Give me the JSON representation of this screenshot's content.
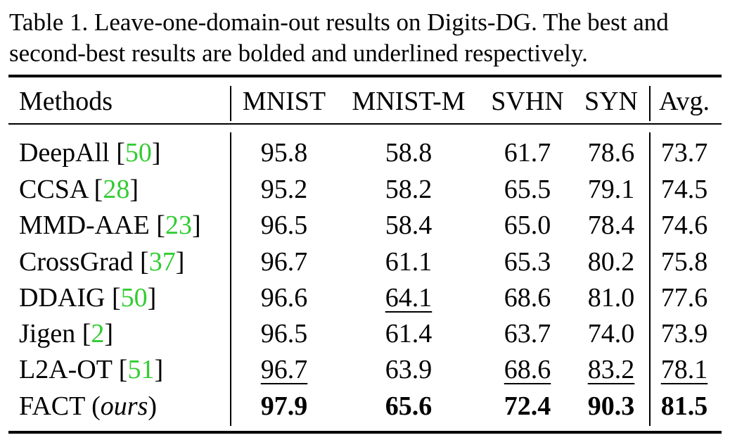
{
  "caption": {
    "line1": "Table 1. Leave-one-domain-out results on Digits-DG. The best and",
    "line2": "second-best results are bolded and underlined respectively."
  },
  "table": {
    "columns": [
      "Methods",
      "MNIST",
      "MNIST-M",
      "SVHN",
      "SYN",
      "Avg."
    ],
    "rows": [
      {
        "method": "DeepAll",
        "cite": "50",
        "values": [
          "95.8",
          "58.8",
          "61.7",
          "78.6",
          "73.7"
        ]
      },
      {
        "method": "CCSA",
        "cite": "28",
        "values": [
          "95.2",
          "58.2",
          "65.5",
          "79.1",
          "74.5"
        ]
      },
      {
        "method": "MMD-AAE",
        "cite": "23",
        "values": [
          "96.5",
          "58.4",
          "65.0",
          "78.4",
          "74.6"
        ]
      },
      {
        "method": "CrossGrad",
        "cite": "37",
        "values": [
          "96.7",
          "61.1",
          "65.3",
          "80.2",
          "75.8"
        ]
      },
      {
        "method": "DDAIG",
        "cite": "50",
        "values": [
          "96.6",
          "64.1",
          "68.6",
          "81.0",
          "77.6"
        ]
      },
      {
        "method": "Jigen",
        "cite": "2",
        "values": [
          "96.5",
          "61.4",
          "63.7",
          "74.0",
          "73.9"
        ]
      },
      {
        "method": "L2A-OT",
        "cite": "51",
        "values": [
          "96.7",
          "63.9",
          "68.6",
          "83.2",
          "78.1"
        ]
      },
      {
        "method": "FACT",
        "method_suffix": "ours",
        "values": [
          "97.9",
          "65.6",
          "72.4",
          "90.3",
          "81.5"
        ]
      }
    ]
  }
}
